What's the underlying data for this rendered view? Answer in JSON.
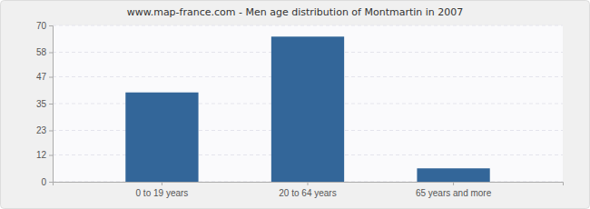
{
  "chart_data": {
    "type": "bar",
    "title": "www.map-france.com - Men age distribution of Montmartin in 2007",
    "categories": [
      "0 to 19 years",
      "20 to 64 years",
      "65 years and more"
    ],
    "values": [
      40,
      65,
      6
    ],
    "color": "#336699",
    "ylim": [
      0,
      70
    ],
    "yticks": [
      0,
      12,
      23,
      35,
      47,
      58,
      70
    ],
    "grid": true
  }
}
